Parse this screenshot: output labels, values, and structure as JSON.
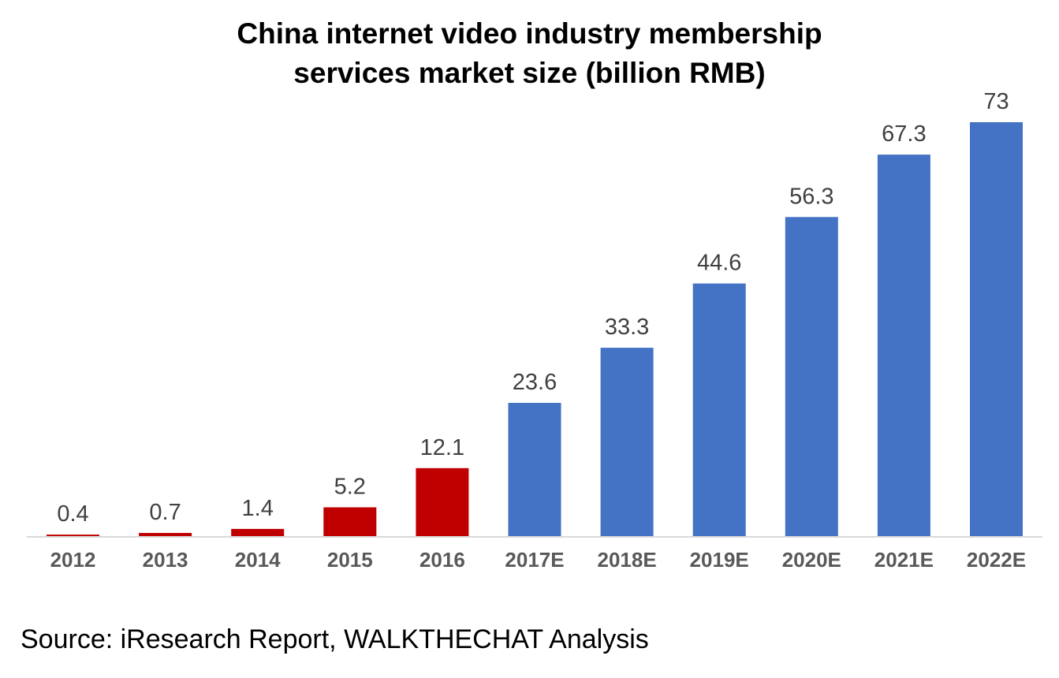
{
  "chart_data": {
    "type": "bar",
    "title_lines": [
      "China internet video industry membership",
      "services market size (billion RMB)"
    ],
    "categories": [
      "2012",
      "2013",
      "2014",
      "2015",
      "2016",
      "2017E",
      "2018E",
      "2019E",
      "2020E",
      "2021E",
      "2022E"
    ],
    "values": [
      0.4,
      0.7,
      1.4,
      5.2,
      12.1,
      23.6,
      33.3,
      44.6,
      56.3,
      67.3,
      73
    ],
    "value_labels": [
      "0.4",
      "0.7",
      "1.4",
      "5.2",
      "12.1",
      "23.6",
      "33.3",
      "44.6",
      "56.3",
      "67.3",
      "73"
    ],
    "bar_colors": [
      "#C00000",
      "#C00000",
      "#C00000",
      "#C00000",
      "#C00000",
      "#4472C4",
      "#4472C4",
      "#4472C4",
      "#4472C4",
      "#4472C4",
      "#4472C4"
    ],
    "ylim": [
      0,
      73
    ],
    "grid": false,
    "legend": "none",
    "xlabel": "",
    "ylabel": ""
  },
  "source_text": "Source: iResearch Report, WALKTHECHAT Analysis",
  "colors": {
    "actual": "#C00000",
    "estimate": "#4472C4",
    "axis": "#D9D9D9",
    "tick_text": "#595959",
    "label_text": "#404040"
  }
}
